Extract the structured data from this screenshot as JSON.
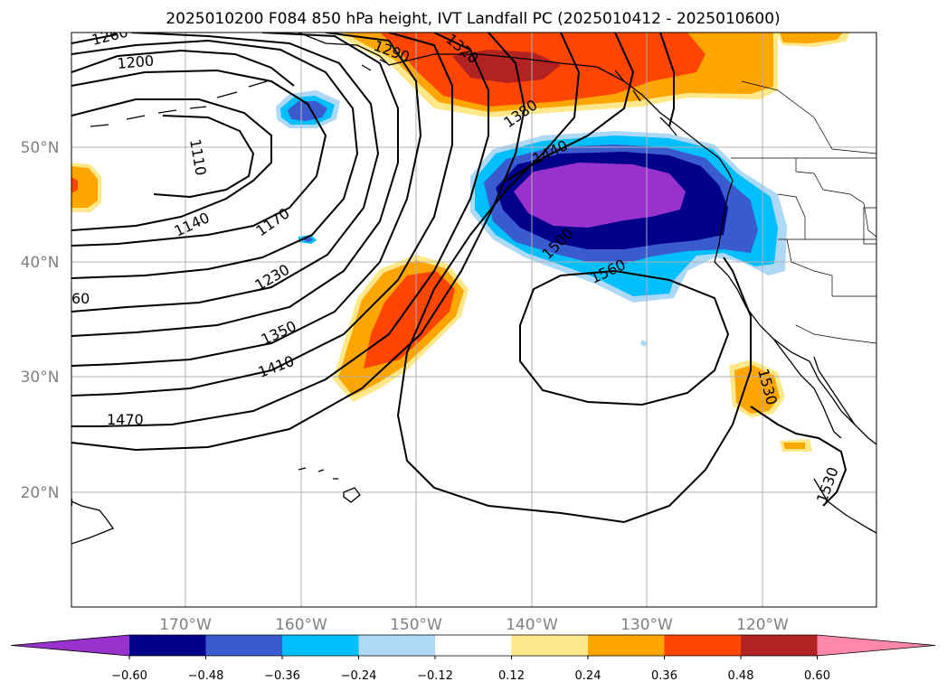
{
  "title": "2025010200 F084 850 hPa height, IVT Landfall PC (2025010412 - 2025010600)",
  "lat_labels": [
    "50°N",
    "40°N",
    "30°N",
    "20°N"
  ],
  "lon_labels": [
    "170°W",
    "160°W",
    "150°W",
    "140°W",
    "130°W",
    "120°W"
  ],
  "contour_labels": [
    "1260",
    "1200",
    "1290",
    "1320",
    "1380",
    "1110",
    "1140",
    "1170",
    "1440",
    "1230",
    "1500",
    "1560",
    "60",
    "1350",
    "1410",
    "1530",
    "1470",
    "1530"
  ],
  "colorbar": {
    "ticks": [
      "−0.60",
      "−0.48",
      "−0.36",
      "−0.24",
      "−0.12",
      "0.12",
      "0.24",
      "0.36",
      "0.48",
      "0.60"
    ],
    "colors": [
      "#9932cc",
      "#00008b",
      "#3a5bcf",
      "#00bfff",
      "#add8f6",
      "#ffffff",
      "#ffe88a",
      "#ffa500",
      "#ff4500",
      "#b22222",
      "#ff88aa"
    ]
  },
  "fill_colors": {
    "orange_light": "#ffe88a",
    "orange": "#ffa500",
    "red_orange": "#ff4500",
    "dark_red": "#b22222",
    "light_blue": "#add8f6",
    "deep_sky_blue": "#00bfff",
    "royal_blue": "#3a5bcf",
    "navy": "#00008b",
    "purple": "#9932cc"
  }
}
